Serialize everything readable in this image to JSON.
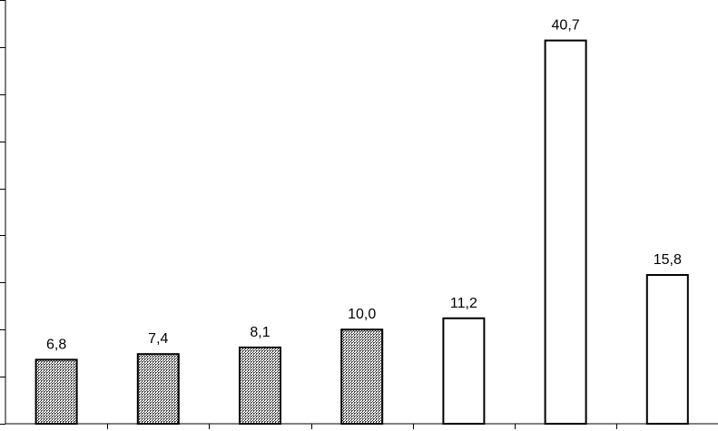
{
  "chart_data": {
    "type": "bar",
    "categories": [
      "",
      "",
      "",
      "",
      "",
      "",
      ""
    ],
    "values": [
      6.8,
      7.4,
      8.1,
      10.0,
      11.2,
      40.7,
      15.8
    ],
    "data_labels": [
      "6,8",
      "7,4",
      "8,1",
      "10,0",
      "11,2",
      "40,7",
      "15,8"
    ],
    "bar_styles": [
      "hatched",
      "hatched",
      "hatched",
      "hatched",
      "outline",
      "outline",
      "outline"
    ],
    "title": "",
    "xlabel": "",
    "ylabel": "",
    "ylim": [
      0,
      45
    ],
    "y_tick_count": 9,
    "grid": false,
    "legend": "none",
    "colors": {
      "stroke": "#000000",
      "hatched_fill": "#888888",
      "outline_fill": "#ffffff"
    }
  }
}
